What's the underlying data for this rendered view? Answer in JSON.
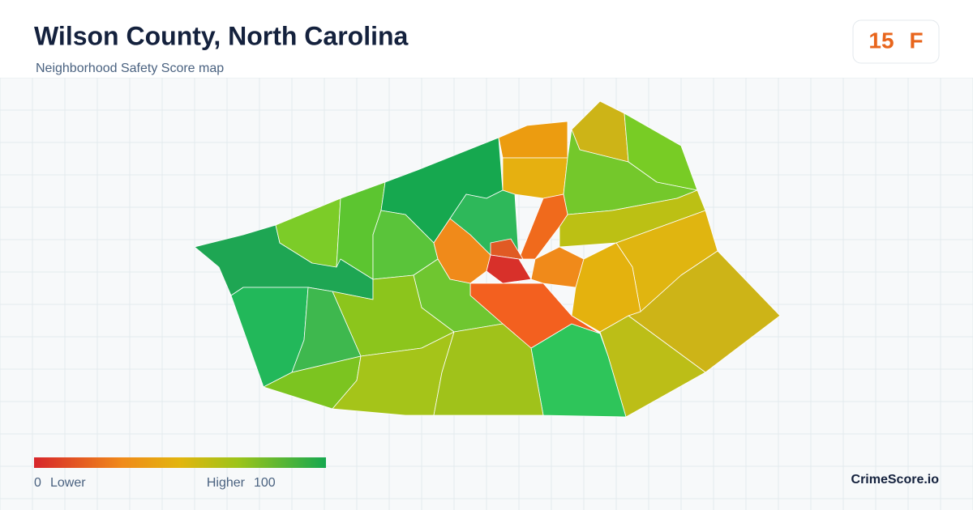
{
  "header": {
    "title": "Wilson County, North Carolina",
    "subtitle": "Neighborhood Safety Score map"
  },
  "score": {
    "value": 15,
    "grade": "F"
  },
  "legend": {
    "min": 0,
    "min_label": "Lower",
    "max_label": "Higher",
    "max": 100
  },
  "brand": "CrimeScore.io"
}
